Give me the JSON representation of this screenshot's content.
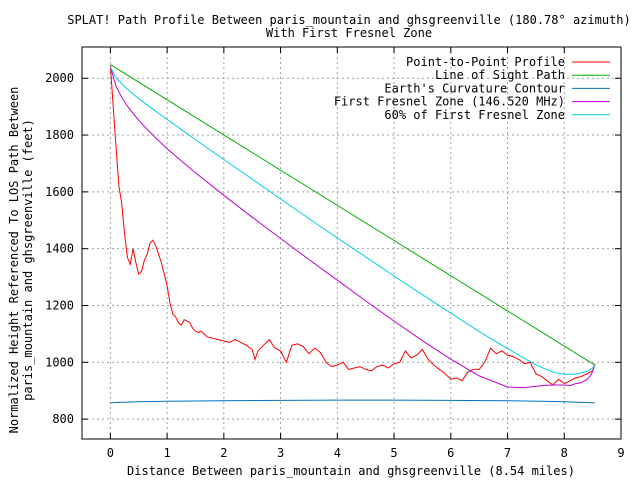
{
  "chart_data": {
    "type": "line",
    "title_line1": "SPLAT! Path Profile Between paris_mountain and ghsgreenville (180.78° azimuth)",
    "title_line2": "With First Fresnel Zone",
    "xlabel": "Distance Between paris_mountain and ghsgreenville (8.54 miles)",
    "ylabel_line1": "Normalized Height Referenced To LOS Path Between",
    "ylabel_line2": "paris_mountain and ghsgreenville (feet)",
    "xlim": [
      -0.5,
      9
    ],
    "ylim": [
      730,
      2110
    ],
    "xticks": [
      0,
      1,
      2,
      3,
      4,
      5,
      6,
      7,
      8,
      9
    ],
    "yticks": [
      800,
      1000,
      1200,
      1400,
      1600,
      1800,
      2000
    ],
    "grid": true,
    "legend_position": "top-right",
    "series": [
      {
        "name": "Point-to-Point Profile",
        "color": "#ff0000",
        "x": [
          0,
          0.05,
          0.1,
          0.15,
          0.2,
          0.25,
          0.3,
          0.35,
          0.4,
          0.45,
          0.5,
          0.55,
          0.6,
          0.65,
          0.7,
          0.75,
          0.8,
          0.85,
          0.9,
          0.95,
          1.0,
          1.05,
          1.1,
          1.15,
          1.2,
          1.25,
          1.3,
          1.35,
          1.4,
          1.45,
          1.5,
          1.55,
          1.6,
          1.65,
          1.7,
          1.8,
          1.9,
          2.0,
          2.1,
          2.2,
          2.3,
          2.4,
          2.5,
          2.55,
          2.6,
          2.7,
          2.8,
          2.9,
          3.0,
          3.1,
          3.2,
          3.3,
          3.4,
          3.5,
          3.6,
          3.7,
          3.8,
          3.9,
          4.0,
          4.1,
          4.2,
          4.3,
          4.4,
          4.5,
          4.6,
          4.7,
          4.8,
          4.9,
          5.0,
          5.1,
          5.2,
          5.3,
          5.4,
          5.5,
          5.6,
          5.7,
          5.8,
          5.9,
          6.0,
          6.1,
          6.2,
          6.3,
          6.4,
          6.5,
          6.6,
          6.7,
          6.75,
          6.8,
          6.9,
          7.0,
          7.1,
          7.2,
          7.3,
          7.4,
          7.5,
          7.6,
          7.7,
          7.8,
          7.9,
          8.0,
          8.1,
          8.2,
          8.3,
          8.4,
          8.5,
          8.54
        ],
        "values": [
          2045,
          1900,
          1760,
          1620,
          1560,
          1450,
          1370,
          1345,
          1400,
          1350,
          1310,
          1320,
          1360,
          1380,
          1420,
          1430,
          1410,
          1380,
          1350,
          1310,
          1270,
          1210,
          1170,
          1160,
          1140,
          1130,
          1150,
          1145,
          1140,
          1120,
          1110,
          1105,
          1110,
          1100,
          1090,
          1085,
          1080,
          1075,
          1070,
          1080,
          1070,
          1060,
          1045,
          1010,
          1040,
          1060,
          1080,
          1050,
          1040,
          1000,
          1060,
          1065,
          1055,
          1030,
          1050,
          1035,
          1000,
          985,
          990,
          1000,
          975,
          980,
          985,
          975,
          970,
          985,
          990,
          980,
          995,
          1000,
          1040,
          1015,
          1025,
          1045,
          1010,
          990,
          975,
          960,
          940,
          945,
          935,
          965,
          975,
          975,
          1000,
          1050,
          1040,
          1030,
          1040,
          1025,
          1020,
          1010,
          995,
          1000,
          960,
          950,
          935,
          920,
          940,
          925,
          935,
          945,
          950,
          960,
          970,
          995
        ]
      },
      {
        "name": "Line of Sight Path",
        "color": "#00b000",
        "x": [
          0,
          8.54
        ],
        "values": [
          2048,
          990
        ]
      },
      {
        "name": "Earth's Curvature Contour",
        "color": "#0070c0",
        "x": [
          0,
          0.1,
          0.5,
          1,
          2,
          3,
          4,
          5,
          6,
          7,
          7.6,
          8,
          8.3,
          8.54
        ],
        "values": [
          857,
          859,
          861,
          863,
          865,
          866,
          867,
          867,
          866,
          865,
          863,
          861,
          859,
          857
        ]
      },
      {
        "name": "First Fresnel Zone (146.520 MHz)",
        "color": "#c000d0",
        "x": [
          0,
          0.1,
          0.2,
          0.3,
          0.4,
          0.5,
          0.6,
          0.8,
          1.0,
          1.25,
          1.5,
          2.0,
          2.5,
          3.0,
          3.5,
          4.0,
          4.5,
          5.0,
          5.5,
          6.0,
          6.5,
          7.0,
          7.3,
          7.6,
          7.8,
          8.0,
          8.1,
          8.2,
          8.3,
          8.4,
          8.46,
          8.5,
          8.54
        ],
        "values": [
          2040,
          1972,
          1933,
          1902,
          1876,
          1852,
          1830,
          1790,
          1752,
          1709,
          1667,
          1588,
          1511,
          1436,
          1362,
          1289,
          1216,
          1145,
          1076,
          1011,
          952,
          913,
          911,
          918,
          920,
          920,
          918,
          925,
          928,
          940,
          953,
          968,
          992
        ]
      },
      {
        "name": "60% of First Fresnel Zone",
        "color": "#00d0e0",
        "x": [
          0,
          0.1,
          0.2,
          0.3,
          0.5,
          0.75,
          1.0,
          1.5,
          2.0,
          2.5,
          3.0,
          3.5,
          4.0,
          4.5,
          5.0,
          5.5,
          6.0,
          6.5,
          7.0,
          7.5,
          7.8,
          8.0,
          8.2,
          8.4,
          8.5,
          8.54
        ],
        "values": [
          2040,
          2002,
          1980,
          1961,
          1928,
          1891,
          1855,
          1784,
          1714,
          1645,
          1575,
          1506,
          1438,
          1371,
          1304,
          1238,
          1173,
          1108,
          1048,
          991,
          965,
          958,
          958,
          968,
          980,
          990
        ]
      }
    ]
  }
}
